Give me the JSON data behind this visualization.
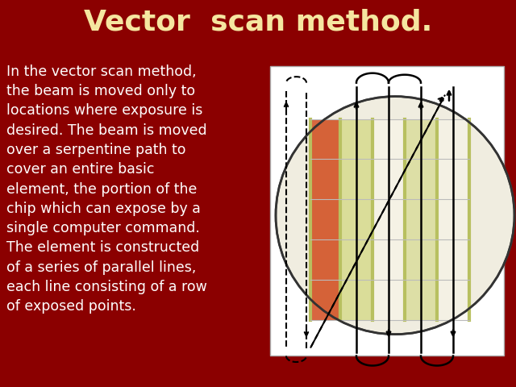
{
  "title": "Vector  scan method.",
  "title_color": "#F5E6A0",
  "title_fontsize": 26,
  "bg_color": "#8B0000",
  "text_color": "#FFFFFF",
  "body_text": "In the vector scan method,\nthe beam is moved only to\nlocations where exposure is\ndesired. The beam is moved\nover a serpentine path to\ncover an entire basic\nelement, the portion of the\nchip which can expose by a\nsingle computer command.\nThe element is constructed\nof a series of parallel lines,\neach line consisting of a row\nof exposed points.",
  "text_fontsize": 12.5,
  "wafer_bg": "#F0EDE0",
  "white_box_bg": "#FFFFFF",
  "grid_line_color": "#B8C060",
  "grid_border_color": "#888888",
  "red_fill": "#CC3300",
  "green_fill": "#C8D060",
  "cell_border": "#999999",
  "path_color": "#111111",
  "dashed_color": "#111111"
}
